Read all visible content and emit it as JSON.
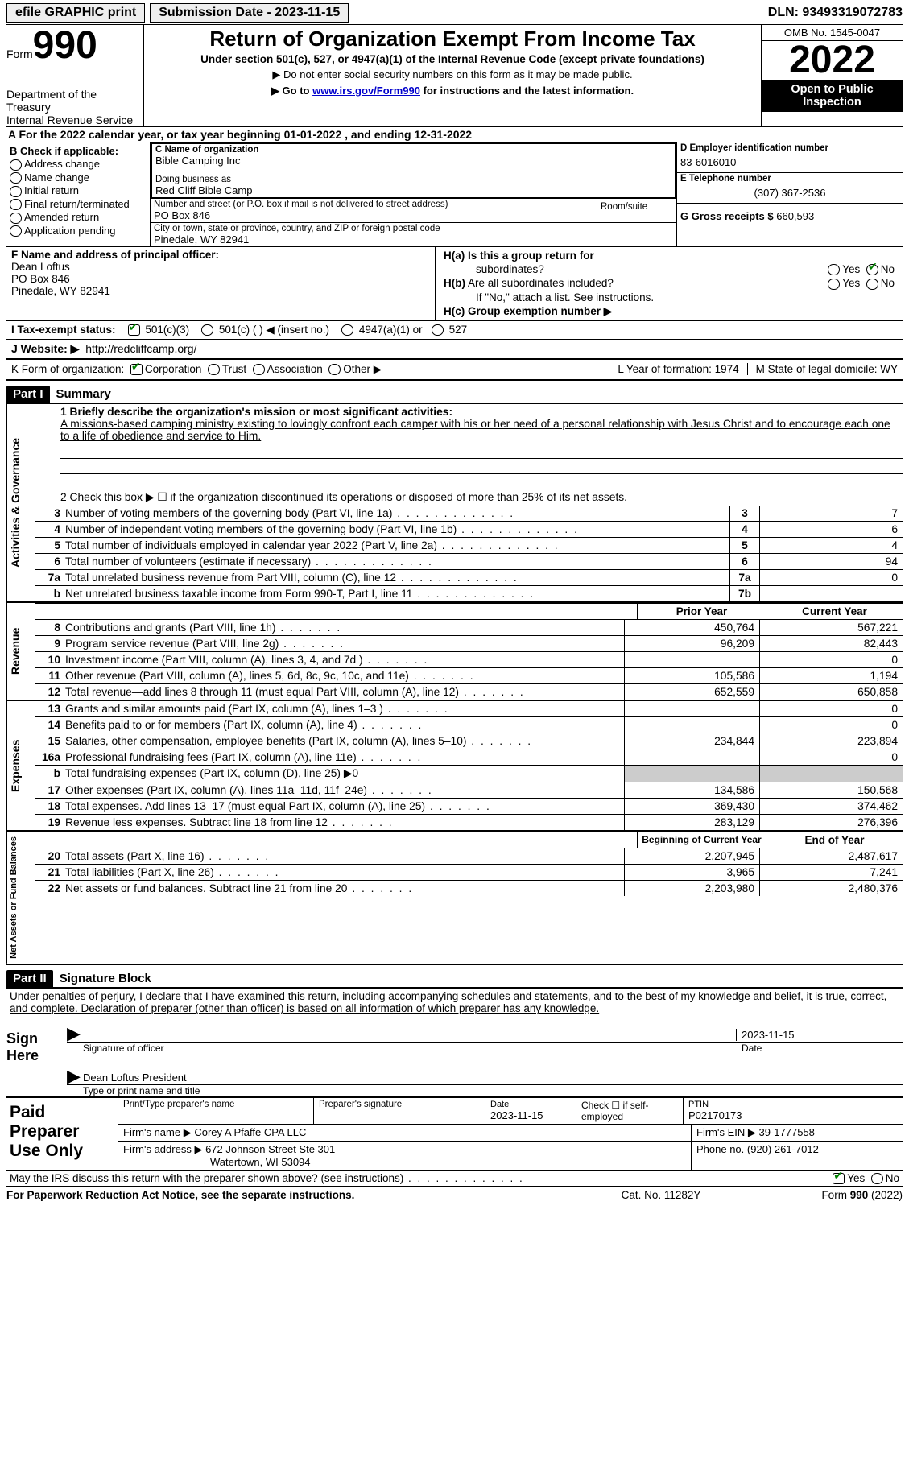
{
  "top": {
    "efile": "efile GRAPHIC print",
    "sub_date_label": "Submission Date - 2023-11-15",
    "dln": "DLN: 93493319072783"
  },
  "header": {
    "form_word": "Form",
    "form_num": "990",
    "title": "Return of Organization Exempt From Income Tax",
    "sub": "Under section 501(c), 527, or 4947(a)(1) of the Internal Revenue Code (except private foundations)",
    "note1": "▶ Do not enter social security numbers on this form as it may be made public.",
    "note2_a": "▶ Go to ",
    "note2_link": "www.irs.gov/Form990",
    "note2_b": " for instructions and the latest information.",
    "dept": "Department of the Treasury\nInternal Revenue Service",
    "omb": "OMB No. 1545-0047",
    "year": "2022",
    "inspect": "Open to Public Inspection"
  },
  "cal": {
    "text_a": "A For the 2022 calendar year, or tax year beginning ",
    "begin": "01-01-2022",
    "mid": "    , and ending ",
    "end": "12-31-2022"
  },
  "B": {
    "label": "B Check if applicable:",
    "opts": [
      "Address change",
      "Name change",
      "Initial return",
      "Final return/terminated",
      "Amended return",
      "Application pending"
    ]
  },
  "C": {
    "name_lbl": "C Name of organization",
    "name": "Bible Camping Inc",
    "dba_lbl": "Doing business as",
    "dba": "Red Cliff Bible Camp",
    "street_lbl": "Number and street (or P.O. box if mail is not delivered to street address)",
    "room_lbl": "Room/suite",
    "street": "PO Box 846",
    "city_lbl": "City or town, state or province, country, and ZIP or foreign postal code",
    "city": "Pinedale, WY  82941"
  },
  "D": {
    "ein_lbl": "D Employer identification number",
    "ein": "83-6016010",
    "phone_lbl": "E Telephone number",
    "phone": "(307) 367-2536",
    "gross_lbl": "G Gross receipts $ ",
    "gross": "660,593"
  },
  "F": {
    "lbl": "F  Name and address of principal officer:",
    "name": "Dean Loftus",
    "addr1": "PO Box 846",
    "addr2": "Pinedale, WY  82941"
  },
  "H": {
    "a_lbl": "H(a)  Is this a group return for",
    "a_sub": "subordinates?",
    "b_lbl": "H(b)  Are all subordinates included?",
    "b_note": "If \"No,\" attach a list. See instructions.",
    "c_lbl": "H(c)  Group exemption number ▶",
    "yes": "Yes",
    "no": "No"
  },
  "I": {
    "lbl": "I    Tax-exempt status:",
    "o1": "501(c)(3)",
    "o2": "501(c) (  ) ◀ (insert no.)",
    "o3": "4947(a)(1) or",
    "o4": "527"
  },
  "J": {
    "lbl": "J   Website: ▶",
    "url": "http://redcliffcamp.org/"
  },
  "K": {
    "lbl": "K Form of organization:",
    "o1": "Corporation",
    "o2": "Trust",
    "o3": "Association",
    "o4": "Other ▶",
    "L": "L Year of formation: 1974",
    "M": "M State of legal domicile: WY"
  },
  "part1": {
    "hdr": "Part I",
    "title": "Summary"
  },
  "mission": {
    "lbl": "1   Briefly describe the organization's mission or most significant activities:",
    "text": "A missions-based camping ministry existing to lovingly confront each camper with his or her need of a personal relationship with Jesus Christ and to encourage each one to a life of obedience and service to Him."
  },
  "line2": "2    Check this box ▶ ☐  if the organization discontinued its operations or disposed of more than 25% of its net assets.",
  "gov": {
    "vtab": "Activities & Governance",
    "rows": [
      {
        "n": "3",
        "t": "Number of voting members of the governing body (Part VI, line 1a)",
        "box": "3",
        "v": "7"
      },
      {
        "n": "4",
        "t": "Number of independent voting members of the governing body (Part VI, line 1b)",
        "box": "4",
        "v": "6"
      },
      {
        "n": "5",
        "t": "Total number of individuals employed in calendar year 2022 (Part V, line 2a)",
        "box": "5",
        "v": "4"
      },
      {
        "n": "6",
        "t": "Total number of volunteers (estimate if necessary)",
        "box": "6",
        "v": "94"
      },
      {
        "n": "7a",
        "t": "Total unrelated business revenue from Part VIII, column (C), line 12",
        "box": "7a",
        "v": "0"
      },
      {
        "n": "b",
        "t": "Net unrelated business taxable income from Form 990-T, Part I, line 11",
        "box": "7b",
        "v": ""
      }
    ]
  },
  "colhdr": {
    "prior": "Prior Year",
    "current": "Current Year"
  },
  "rev": {
    "vtab": "Revenue",
    "rows": [
      {
        "n": "8",
        "t": "Contributions and grants (Part VIII, line 1h)",
        "p": "450,764",
        "c": "567,221"
      },
      {
        "n": "9",
        "t": "Program service revenue (Part VIII, line 2g)",
        "p": "96,209",
        "c": "82,443"
      },
      {
        "n": "10",
        "t": "Investment income (Part VIII, column (A), lines 3, 4, and 7d )",
        "p": "",
        "c": "0"
      },
      {
        "n": "11",
        "t": "Other revenue (Part VIII, column (A), lines 5, 6d, 8c, 9c, 10c, and 11e)",
        "p": "105,586",
        "c": "1,194"
      },
      {
        "n": "12",
        "t": "Total revenue—add lines 8 through 11 (must equal Part VIII, column (A), line 12)",
        "p": "652,559",
        "c": "650,858"
      }
    ]
  },
  "exp": {
    "vtab": "Expenses",
    "rows": [
      {
        "n": "13",
        "t": "Grants and similar amounts paid (Part IX, column (A), lines 1–3 )",
        "p": "",
        "c": "0"
      },
      {
        "n": "14",
        "t": "Benefits paid to or for members (Part IX, column (A), line 4)",
        "p": "",
        "c": "0"
      },
      {
        "n": "15",
        "t": "Salaries, other compensation, employee benefits (Part IX, column (A), lines 5–10)",
        "p": "234,844",
        "c": "223,894"
      },
      {
        "n": "16a",
        "t": "Professional fundraising fees (Part IX, column (A), line 11e)",
        "p": "",
        "c": "0"
      },
      {
        "n": "b",
        "t": "Total fundraising expenses (Part IX, column (D), line 25) ▶0",
        "p": "grey",
        "c": "grey"
      },
      {
        "n": "17",
        "t": "Other expenses (Part IX, column (A), lines 11a–11d, 11f–24e)",
        "p": "134,586",
        "c": "150,568"
      },
      {
        "n": "18",
        "t": "Total expenses. Add lines 13–17 (must equal Part IX, column (A), line 25)",
        "p": "369,430",
        "c": "374,462"
      },
      {
        "n": "19",
        "t": "Revenue less expenses. Subtract line 18 from line 12",
        "p": "283,129",
        "c": "276,396"
      }
    ]
  },
  "colhdr2": {
    "begin": "Beginning of Current Year",
    "end": "End of Year"
  },
  "net": {
    "vtab": "Net Assets or Fund Balances",
    "rows": [
      {
        "n": "20",
        "t": "Total assets (Part X, line 16)",
        "p": "2,207,945",
        "c": "2,487,617"
      },
      {
        "n": "21",
        "t": "Total liabilities (Part X, line 26)",
        "p": "3,965",
        "c": "7,241"
      },
      {
        "n": "22",
        "t": "Net assets or fund balances. Subtract line 21 from line 20",
        "p": "2,203,980",
        "c": "2,480,376"
      }
    ]
  },
  "part2": {
    "hdr": "Part II",
    "title": "Signature Block"
  },
  "sig": {
    "decl": "Under penalties of perjury, I declare that I have examined this return, including accompanying schedules and statements, and to the best of my knowledge and belief, it is true, correct, and complete. Declaration of preparer (other than officer) is based on all information of which preparer has any knowledge.",
    "here": "Sign Here",
    "sig_lbl": "Signature of officer",
    "date_lbl": "Date",
    "date": "2023-11-15",
    "name": "Dean Loftus  President",
    "name_lbl": "Type or print name and title"
  },
  "prep": {
    "title": "Paid Preparer Use Only",
    "r1": {
      "a": "Print/Type preparer's name",
      "b": "Preparer's signature",
      "c_lbl": "Date",
      "c": "2023-11-15",
      "d": "Check ☐  if self-employed",
      "e_lbl": "PTIN",
      "e": "P02170173"
    },
    "r2": {
      "lbl": "Firm's name      ▶",
      "val": "Corey A Pfaffe CPA LLC",
      "ein_lbl": "Firm's EIN ▶",
      "ein": "39-1777558"
    },
    "r3": {
      "lbl": "Firm's address ▶",
      "a1": "672 Johnson Street Ste 301",
      "a2": "Watertown, WI  53094",
      "ph_lbl": "Phone no.",
      "ph": "(920) 261-7012"
    }
  },
  "discuss": {
    "q": "May the IRS discuss this return with the preparer shown above? (see instructions)",
    "yes": "Yes",
    "no": "No"
  },
  "footer": {
    "a": "For Paperwork Reduction Act Notice, see the separate instructions.",
    "b": "Cat. No. 11282Y",
    "c": "Form 990 (2022)"
  }
}
